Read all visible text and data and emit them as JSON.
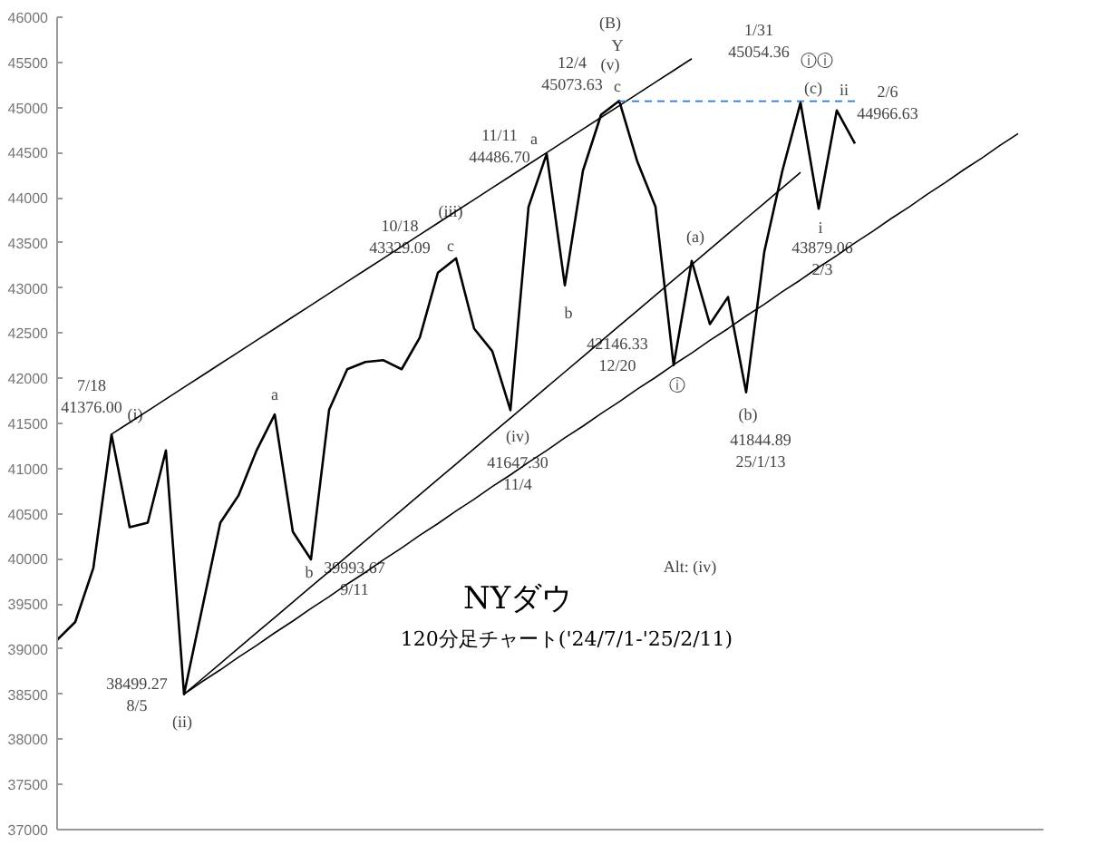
{
  "chart_data": {
    "type": "line",
    "title": "NYダウ",
    "subtitle": "120分足チャート('24/7/1-'25/2/11)",
    "categories": [
      null,
      null,
      null,
      null,
      null,
      null,
      null,
      null,
      null,
      null,
      null,
      null,
      null,
      null,
      null,
      null,
      null,
      null,
      null,
      null,
      null,
      null,
      null,
      null,
      null,
      null,
      null,
      null,
      null,
      null,
      null,
      null,
      null,
      null,
      null,
      null,
      null,
      null,
      null,
      null,
      null,
      null,
      null,
      null,
      null,
      null,
      null,
      null,
      null,
      null,
      null,
      null,
      null,
      null
    ],
    "ylim": [
      37000,
      46000
    ],
    "yticks": [
      37000,
      37500,
      38000,
      38500,
      39000,
      39500,
      40000,
      40500,
      41000,
      41500,
      42000,
      42500,
      43000,
      43500,
      44000,
      44500,
      45000,
      45500,
      46000
    ],
    "tick_labels": "y",
    "grid": false,
    "series": [
      {
        "color": "#000000",
        "values": [
          39100,
          39300,
          39900,
          41376,
          40350,
          40400,
          41200,
          38499,
          39450,
          40400,
          40700,
          41200,
          41600,
          40300,
          39994,
          41650,
          42100,
          42180,
          42200,
          42100,
          42450,
          43170,
          43329,
          42550,
          42300,
          41647,
          43900,
          44487,
          43030,
          44300,
          44920,
          45074,
          44400,
          43900,
          42146,
          43300,
          42600,
          42900,
          41845,
          43400,
          44300,
          45054,
          43879,
          44967,
          44600,
          null,
          null,
          null,
          null,
          null,
          null,
          null,
          null,
          null
        ]
      },
      {
        "color": "#000000",
        "values": [
          null,
          null,
          null,
          41380,
          41510,
          41640,
          41770,
          41900,
          42030,
          42160,
          42290,
          42420,
          42550,
          42680,
          42810,
          42940,
          43070,
          43200,
          43330,
          43460,
          43590,
          43720,
          43850,
          43980,
          44110,
          44240,
          44370,
          44500,
          44630,
          44760,
          44890,
          45020,
          45150,
          45280,
          45410,
          45540,
          null,
          null,
          null,
          null,
          null,
          null,
          null,
          null,
          null,
          null,
          null,
          null,
          null,
          null,
          null,
          null,
          null,
          null
        ]
      },
      {
        "color": "#000000",
        "values": [
          null,
          null,
          null,
          null,
          null,
          null,
          null,
          38500,
          38670,
          38840,
          39010,
          39180,
          39350,
          39520,
          39690,
          39860,
          40030,
          40200,
          40370,
          40540,
          40710,
          40880,
          41050,
          41220,
          41390,
          41560,
          41730,
          41900,
          42070,
          42240,
          42410,
          42580,
          42750,
          42920,
          43090,
          43260,
          43430,
          43600,
          43770,
          43940,
          44110,
          44280,
          null,
          null,
          null,
          null,
          null,
          null,
          null,
          null,
          null,
          null,
          null,
          null
        ]
      },
      {
        "color": "#000000",
        "values": [
          null,
          null,
          null,
          null,
          null,
          null,
          null,
          38500,
          38640,
          38770,
          38910,
          39040,
          39180,
          39310,
          39450,
          39580,
          39720,
          39850,
          39990,
          40120,
          40260,
          40390,
          40530,
          40660,
          40800,
          40930,
          41070,
          41200,
          41340,
          41470,
          41610,
          41740,
          41880,
          42010,
          42150,
          42280,
          42420,
          42550,
          42690,
          42820,
          42960,
          43090,
          43230,
          43360,
          43500,
          43630,
          43770,
          43900,
          44040,
          44170,
          44310,
          44440,
          44580,
          44710
        ]
      },
      {
        "color": "#2e75d6",
        "line_style": "dashed",
        "values": [
          null,
          null,
          null,
          null,
          null,
          null,
          null,
          null,
          null,
          null,
          null,
          null,
          null,
          null,
          null,
          null,
          null,
          null,
          null,
          null,
          null,
          null,
          null,
          null,
          null,
          null,
          null,
          null,
          null,
          null,
          null,
          45070,
          45070,
          45070,
          45070,
          45070,
          45070,
          45070,
          45070,
          45070,
          45070,
          45070,
          45070,
          45070,
          45070,
          null,
          null,
          null,
          null,
          null,
          null,
          null,
          null,
          null
        ]
      }
    ],
    "annotations": [
      "7/18\n41376.00",
      "(i)",
      "a",
      "38499.27\n8/5",
      "(ii)",
      "b",
      "39993.67\n9/11",
      "10/18\n43329.09",
      "(iii)",
      "c",
      "11/11\n44486.70",
      "a",
      "b",
      "(iv)",
      "41647.30\n11/4",
      "(B)",
      "Y",
      "(v)",
      "c",
      "12/4\n45073.63",
      "42146.33\n12/20",
      "ⓘ",
      "(a)",
      "(b)",
      "41844.89\n25/1/13",
      "1/31\n45054.36",
      "ⓘⓘ",
      "(c)",
      "ii",
      "2/6\n44966.63",
      "i",
      "43879.06\n2/3",
      "Alt: (iv)"
    ]
  }
}
